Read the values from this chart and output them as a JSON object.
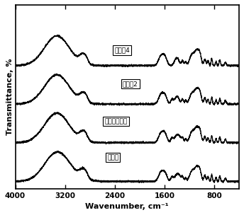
{
  "title": "",
  "xlabel": "Wavenumber, cm⁻¹",
  "ylabel": "Transmittance, %",
  "xlim": [
    4000,
    400
  ],
  "xticks": [
    4000,
    3200,
    2400,
    1600,
    800
  ],
  "background_color": "#ffffff",
  "labels": [
    "实施例4",
    "实施例2",
    "季铵化壳聚糖",
    "壳聚糖"
  ],
  "line_color": "#000000",
  "line_width": 0.9,
  "offsets": [
    3.0,
    2.0,
    1.0,
    0.0
  ],
  "scale": 0.82
}
